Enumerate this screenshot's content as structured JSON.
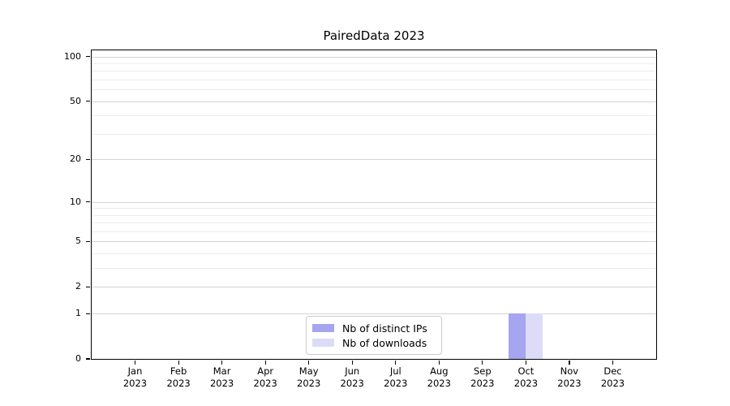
{
  "chart_data": {
    "type": "bar",
    "title": "PairedData 2023",
    "x_axis": {
      "categories": [
        "Jan",
        "Feb",
        "Mar",
        "Apr",
        "May",
        "Jun",
        "Jul",
        "Aug",
        "Sep",
        "Oct",
        "Nov",
        "Dec"
      ],
      "year": "2023"
    },
    "y_axis": {
      "scale": "log1p",
      "min": 0,
      "max": 110,
      "ticks": [
        0,
        1,
        2,
        5,
        10,
        20,
        50,
        100
      ],
      "minor_ticks": [
        3,
        4,
        6,
        7,
        8,
        9,
        30,
        40,
        60,
        70,
        80,
        90
      ]
    },
    "series": [
      {
        "name": "Nb of distinct IPs",
        "color": "#a5a5f0",
        "values": [
          0,
          0,
          0,
          0,
          0,
          0,
          0,
          0,
          0,
          1,
          0,
          0
        ]
      },
      {
        "name": "Nb of downloads",
        "color": "#dcdcf8",
        "values": [
          0,
          0,
          0,
          0,
          0,
          0,
          0,
          0,
          0,
          1,
          0,
          0
        ]
      }
    ],
    "legend": {
      "position": "lower center"
    },
    "grid": "horizontal",
    "colors": {
      "major_grid": "#d4d4d4",
      "minor_grid": "#ececec",
      "spine": "#000000",
      "background": "#ffffff"
    }
  }
}
